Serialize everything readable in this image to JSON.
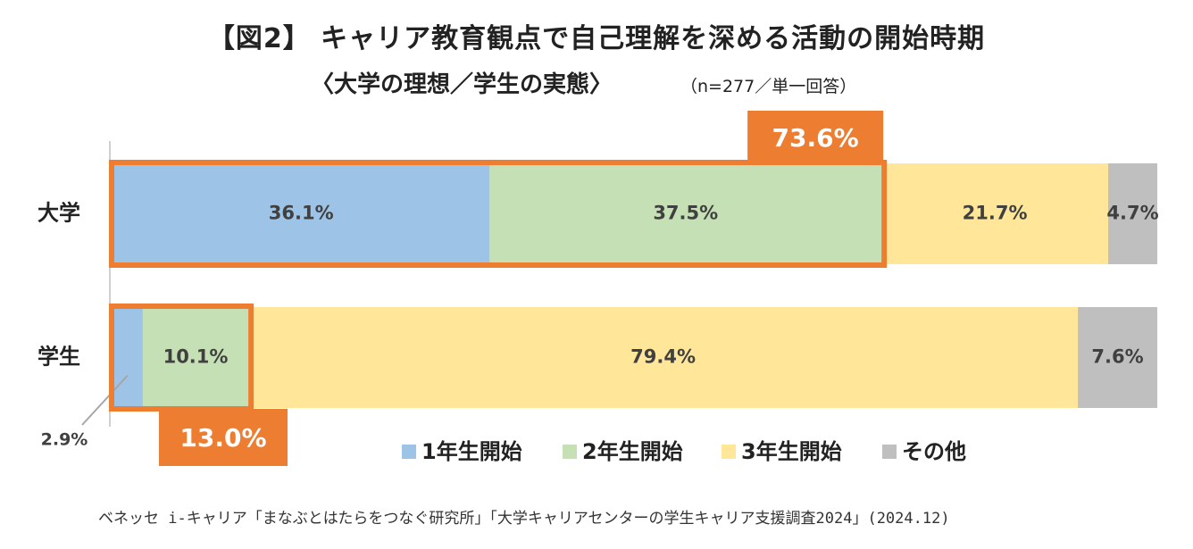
{
  "title": "【図2】 キャリア教育観点で自己理解を深める活動の開始時期",
  "subtitle": "〈大学の理想／学生の実態〉",
  "sample_note": "（n=277／単一回答）",
  "source": "ベネッセ i-キャリア「まなぶとはたらをつなぐ研究所」「大学キャリアセンターの学生キャリア支援調査2024」(2024.12)",
  "chart_data": {
    "type": "bar",
    "orientation": "horizontal",
    "stacked": true,
    "unit": "%",
    "categories": [
      "大学",
      "学生"
    ],
    "series": [
      {
        "name": "1年生開始",
        "values": [
          36.1,
          2.9
        ],
        "color": "#9dc3e6"
      },
      {
        "name": "2年生開始",
        "values": [
          37.5,
          10.1
        ],
        "color": "#c5e0b4"
      },
      {
        "name": "3年生開始",
        "values": [
          21.7,
          79.4
        ],
        "color": "#ffe699"
      },
      {
        "name": "その他",
        "values": [
          4.7,
          7.6
        ],
        "color": "#bfbfbf"
      }
    ],
    "data_labels": [
      [
        "36.1%",
        "37.5%",
        "21.7%",
        "4.7%"
      ],
      [
        "2.9%",
        "10.1%",
        "79.4%",
        "7.6%"
      ]
    ],
    "callouts": [
      {
        "category": "大学",
        "label": "73.6%",
        "sum_of_series": [
          "1年生開始",
          "2年生開始"
        ]
      },
      {
        "category": "学生",
        "label": "13.0%",
        "sum_of_series": [
          "1年生開始",
          "2年生開始"
        ]
      }
    ],
    "xlim": [
      0,
      100
    ],
    "legend_position": "bottom",
    "grid": false,
    "accent_color": "#ed7d31"
  }
}
